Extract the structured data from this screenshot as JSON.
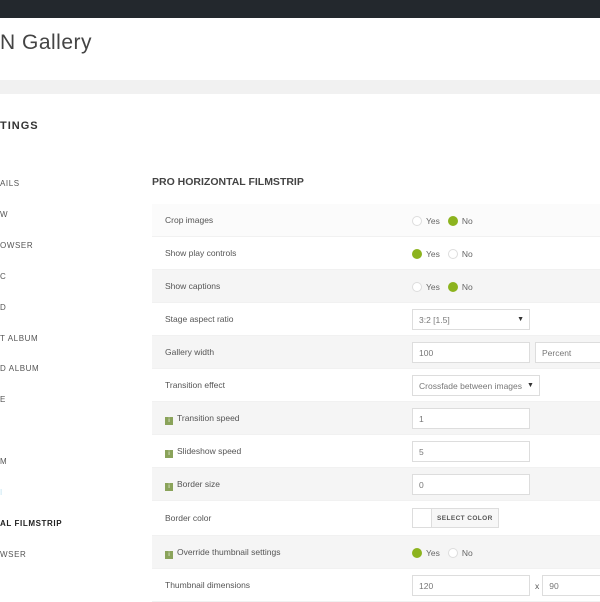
{
  "header": {
    "title": "N Gallery"
  },
  "sidebar": {
    "title": "TINGS",
    "items": [
      {
        "label": "AILS",
        "state": "normal"
      },
      {
        "label": "W",
        "state": "normal"
      },
      {
        "label": "OWSER",
        "state": "normal"
      },
      {
        "label": "C",
        "state": "normal"
      },
      {
        "label": "D",
        "state": "normal"
      },
      {
        "label": "T ALBUM",
        "state": "normal"
      },
      {
        "label": "D ALBUM",
        "state": "normal"
      },
      {
        "label": "E",
        "state": "normal"
      },
      {
        "label": "",
        "state": "normal"
      },
      {
        "label": "M",
        "state": "normal"
      },
      {
        "label": "I",
        "state": "light"
      },
      {
        "label": "AL FILMSTRIP",
        "state": "active"
      },
      {
        "label": "WSER",
        "state": "normal"
      }
    ]
  },
  "section": {
    "title": "PRO HORIZONTAL FILMSTRIP"
  },
  "settings": {
    "crop": {
      "label": "Crop images",
      "yes": "Yes",
      "no": "No",
      "value": "No"
    },
    "play": {
      "label": "Show play controls",
      "yes": "Yes",
      "no": "No",
      "value": "Yes"
    },
    "captions": {
      "label": "Show captions",
      "yes": "Yes",
      "no": "No",
      "value": "No"
    },
    "aspect": {
      "label": "Stage aspect ratio",
      "value": "3:2 [1.5]"
    },
    "width": {
      "label": "Gallery width",
      "value": "100",
      "unit": "Percent"
    },
    "effect": {
      "label": "Transition effect",
      "value": "Crossfade between images"
    },
    "tspeed": {
      "label": "Transition speed",
      "value": "1"
    },
    "sspeed": {
      "label": "Slideshow speed",
      "value": "5"
    },
    "border": {
      "label": "Border size",
      "value": "0"
    },
    "bcolor": {
      "label": "Border color",
      "button": "SELECT COLOR"
    },
    "override": {
      "label": "Override thumbnail settings",
      "yes": "Yes",
      "no": "No",
      "value": "Yes"
    },
    "thumb": {
      "label": "Thumbnail dimensions",
      "width": "120",
      "sep": "x",
      "height": "90"
    }
  },
  "icons": {
    "info": "i"
  },
  "colors": {
    "accent": "#8cb31e",
    "topbar": "#23282d"
  }
}
